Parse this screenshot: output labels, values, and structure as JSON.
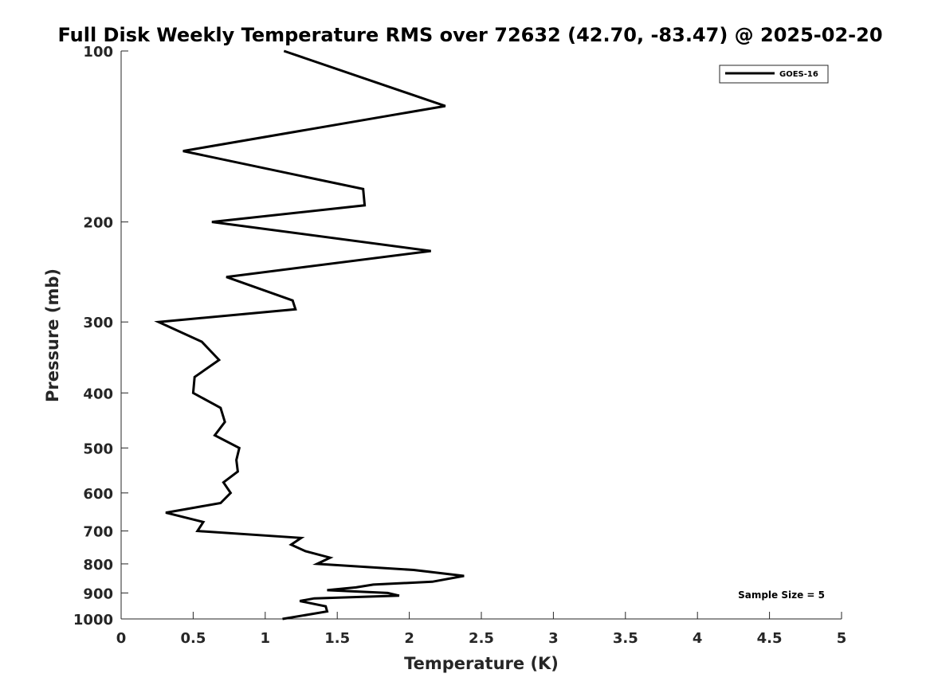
{
  "chart_data": {
    "type": "line",
    "title": "Full Disk Weekly Temperature RMS over 72632 (42.70, -83.47) @ 2025-02-20",
    "xlabel": "Temperature (K)",
    "ylabel": "Pressure (mb)",
    "xlim": [
      0,
      5
    ],
    "ylim": [
      100,
      1000
    ],
    "y_scale": "log",
    "y_direction": "reversed",
    "grid": false,
    "xticks": [
      "0",
      "0.5",
      "1",
      "1.5",
      "2",
      "2.5",
      "3",
      "3.5",
      "4",
      "4.5",
      "5"
    ],
    "yticks": [
      "100",
      "200",
      "300",
      "400",
      "500",
      "600",
      "700",
      "800",
      "900",
      "1000"
    ],
    "legend": {
      "position": "top-right",
      "entries": [
        "GOES-16"
      ]
    },
    "annotation": "Sample Size = 5",
    "series": [
      {
        "name": "GOES-16",
        "color": "#000000",
        "x": [
          1.13,
          2.25,
          0.43,
          1.68,
          1.69,
          0.63,
          2.15,
          0.73,
          1.19,
          1.21,
          0.26,
          0.56,
          0.68,
          0.51,
          0.5,
          0.69,
          0.72,
          0.65,
          0.82,
          0.8,
          0.81,
          0.71,
          0.76,
          0.69,
          0.31,
          0.57,
          0.53,
          1.25,
          1.18,
          1.28,
          1.45,
          1.36,
          2.03,
          2.38,
          2.16,
          1.75,
          1.63,
          1.43,
          1.85,
          1.93,
          1.34,
          1.24,
          1.42,
          1.43,
          1.12
        ],
        "y": [
          100,
          125,
          150,
          175,
          187,
          200,
          225,
          250,
          275,
          285,
          300,
          325,
          350,
          375,
          400,
          425,
          450,
          475,
          500,
          525,
          550,
          575,
          600,
          625,
          650,
          675,
          700,
          720,
          740,
          760,
          780,
          800,
          820,
          840,
          860,
          870,
          880,
          890,
          900,
          910,
          920,
          930,
          950,
          970,
          1000
        ]
      }
    ]
  }
}
